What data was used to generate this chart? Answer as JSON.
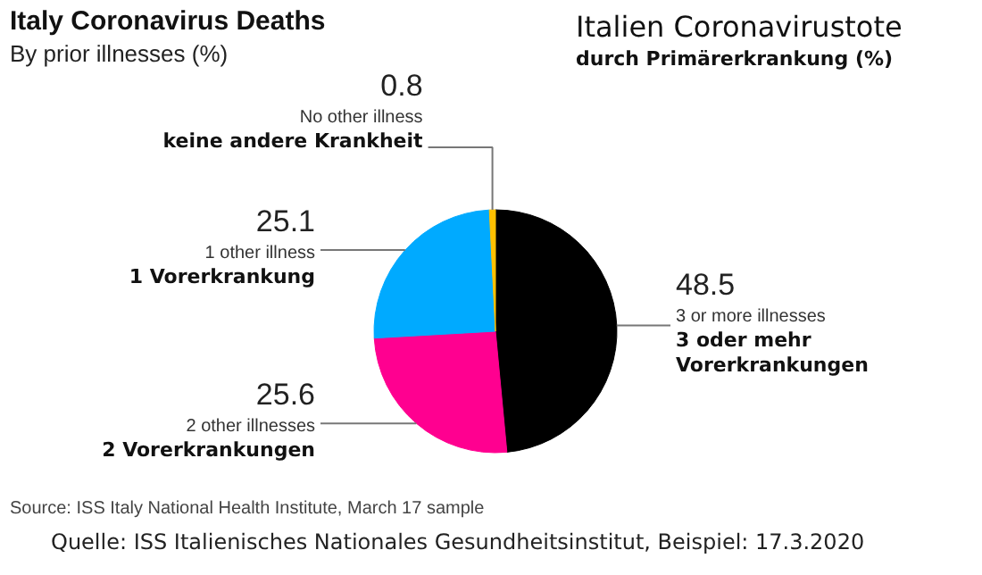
{
  "chart_data": {
    "type": "pie",
    "title": "Italy Coronavirus Deaths",
    "subtitle": "By prior illnesses (%)",
    "categories": [
      "3 or more illnesses",
      "2 other illnesses",
      "1 other illness",
      "No other illness"
    ],
    "values": [
      48.5,
      25.6,
      25.1,
      0.8
    ],
    "colors": [
      "#000000",
      "#ff0090",
      "#00aaff",
      "#ffc000"
    ],
    "data_labels": true,
    "annotations": [
      "Italien Coronavirustote",
      "durch Primärerkrankung (%)",
      "Source: ISS Italy National Health Institute, March 17 sample",
      "Quelle: ISS Italienisches Nationales Gesundheitsinstitut, Beispiel: 17.3.2020",
      {
        "text": "3 oder mehr Vorerkrankungen",
        "x": "3 or more illnesses"
      },
      {
        "text": "2 Vorerkrankungen",
        "x": "2 other illnesses"
      },
      {
        "text": "1 Vorerkrankung",
        "x": "1 other illness"
      },
      {
        "text": "keine andere Krankheit",
        "x": "No other illness"
      }
    ]
  }
}
